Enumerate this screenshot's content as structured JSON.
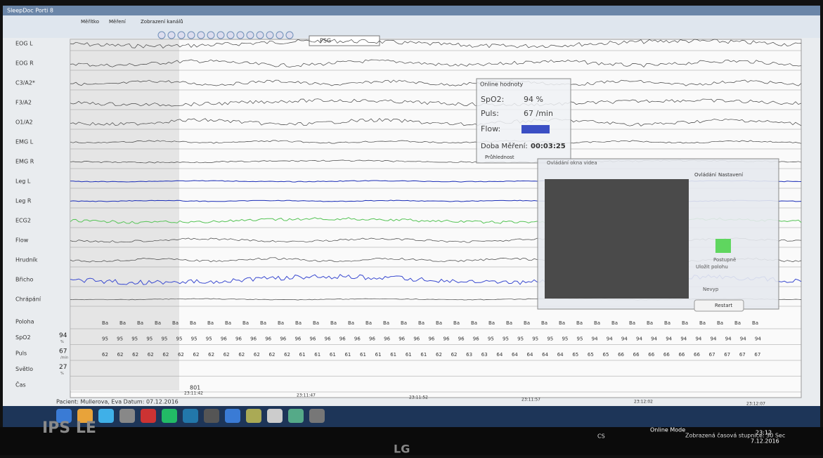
{
  "window": {
    "title": "SleepDoc Porti 8",
    "menu": [
      "Měřítko",
      "Měření",
      "Zobrazení kanálů"
    ],
    "montage": "PSG"
  },
  "channels": [
    "EOG L",
    "EOG R",
    "C3/A2*",
    "F3/A2",
    "O1/A2",
    "EMG L",
    "EMG R",
    "Leg L",
    "Leg R",
    "ECG2",
    "Flow",
    "Hrudník",
    "Břicho",
    "Chrápání",
    "Poloha",
    "SpO2",
    "Puls",
    "Světlo",
    "Čas"
  ],
  "current": {
    "spo2": {
      "value": 94,
      "unit": "%"
    },
    "puls": {
      "value": 67,
      "unit": "/min"
    },
    "svetlo": {
      "value": 27,
      "unit": "%"
    }
  },
  "rows": {
    "poloha": [
      "Ba",
      "Ba",
      "Ba",
      "Ba",
      "Ba",
      "Ba",
      "Ba",
      "Ba",
      "Ba",
      "Ba",
      "Ba",
      "Ba",
      "Ba",
      "Ba",
      "Ba",
      "Ba",
      "Ba",
      "Ba",
      "Ba",
      "Ba",
      "Ba",
      "Ba",
      "Ba",
      "Ba",
      "Ba",
      "Ba",
      "Ba",
      "Ba",
      "Ba",
      "Ba",
      "Ba",
      "Ba",
      "Ba",
      "Ba",
      "Ba",
      "Ba",
      "Ba",
      "Ba"
    ],
    "spo2": [
      95,
      95,
      95,
      95,
      95,
      95,
      95,
      95,
      96,
      96,
      96,
      96,
      96,
      96,
      96,
      96,
      96,
      96,
      96,
      96,
      96,
      96,
      96,
      96,
      96,
      96,
      95,
      95,
      95,
      95,
      95,
      95,
      95,
      94,
      94,
      94,
      94,
      94,
      94,
      94,
      94,
      94,
      94,
      94,
      94
    ],
    "puls": [
      62,
      62,
      62,
      62,
      62,
      62,
      62,
      62,
      62,
      62,
      62,
      62,
      62,
      61,
      61,
      61,
      61,
      61,
      61,
      61,
      61,
      61,
      62,
      62,
      63,
      63,
      64,
      64,
      64,
      64,
      64,
      65,
      65,
      65,
      66,
      66,
      66,
      66,
      66,
      66,
      67,
      67,
      67,
      67
    ]
  },
  "time": {
    "epoch": "801",
    "labels": [
      "23:11:42",
      "23:11:47",
      "23:11:52",
      "23:11:57",
      "23:12:02",
      "23:12:07"
    ]
  },
  "patient": "Pacient: Mullerova, Eva  Datum: 07.12.2016",
  "online": {
    "title": "Online hodnoty",
    "spo2_label": "SpO2:",
    "spo2": "94 %",
    "puls_label": "Puls:",
    "puls": "67 /min",
    "flow_label": "Flow:",
    "duration_label": "Doba Měření:",
    "duration": "00:03:25",
    "transparency": "Průhlednost"
  },
  "video": {
    "title": "Ovládání okna videa",
    "tabs": [
      "Ovládání",
      "Nastavení"
    ],
    "step": "Postupně",
    "save": "Uložit polohu",
    "off": "Nevyp",
    "restart": "Restart"
  },
  "status": {
    "mode": "Online Mode",
    "scale": "Zobrazená časová stupnice: 30 Sec",
    "lang": "CS",
    "clock": "23:12",
    "date": "7.12.2016"
  },
  "monitor": {
    "panel": "IPS LE",
    "brand": "LG"
  }
}
